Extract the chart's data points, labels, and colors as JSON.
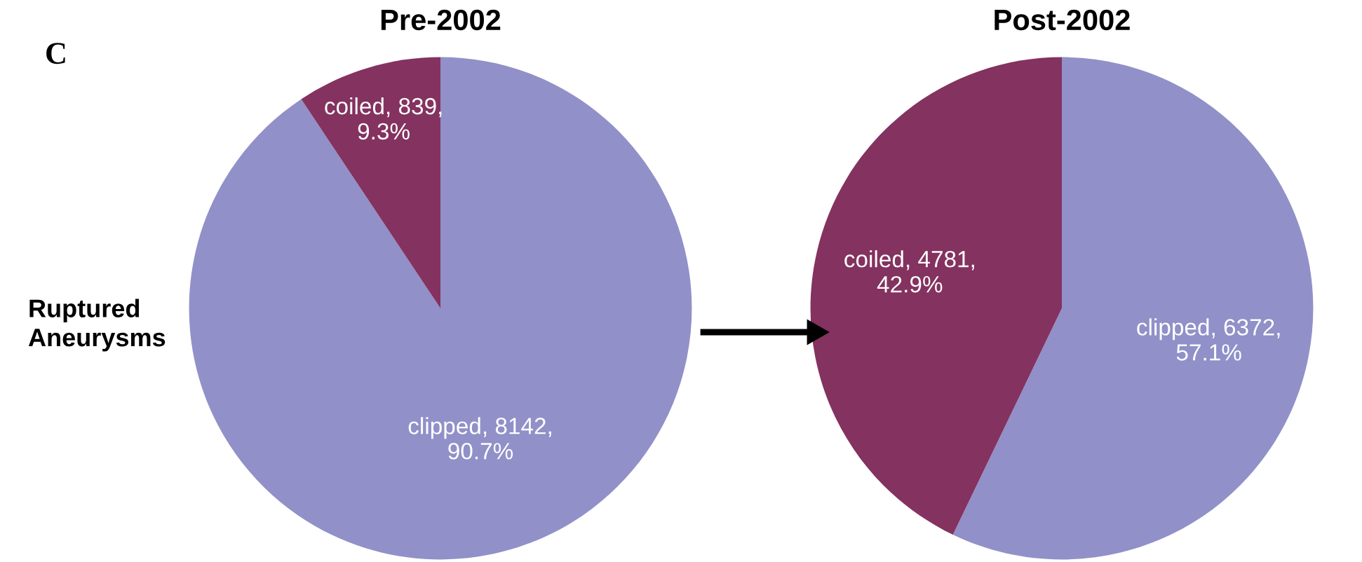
{
  "chart_data": [
    {
      "type": "pie",
      "title": "Pre-2002",
      "categories": [
        "clipped",
        "coiled"
      ],
      "values": [
        8142,
        839
      ],
      "colors": [
        "#9190c8",
        "#84325f"
      ],
      "value_labels": [
        "8142,\n90.7%",
        "839,\n9.3%"
      ],
      "annotations": [
        "C",
        "Ruptured\nAneurysms"
      ]
    },
    {
      "type": "pie",
      "title": "Post-2002",
      "categories": [
        "clipped",
        "coiled"
      ],
      "values": [
        6372,
        4781
      ],
      "colors": [
        "#9190c8",
        "#84325f"
      ],
      "value_labels": [
        "6372,\n57.1%",
        "4781,\n42.9%"
      ]
    }
  ]
}
